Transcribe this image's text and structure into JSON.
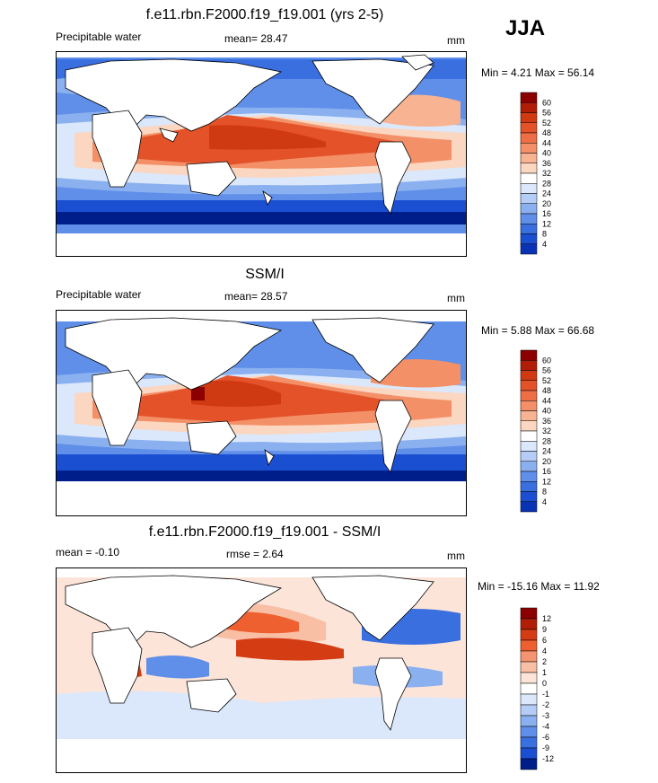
{
  "season": "JJA",
  "panels": [
    {
      "title": "f.e11.rbn.F2000.f19_f19.001 (yrs 2-5)",
      "left_label": "Precipitable water",
      "mid_label": "mean=  28.47",
      "units": "mm",
      "minmax": "Min =   4.21 Max =  56.14",
      "levels": [
        "60",
        "56",
        "52",
        "48",
        "44",
        "40",
        "36",
        "32",
        "28",
        "24",
        "20",
        "16",
        "12",
        "8",
        "4"
      ]
    },
    {
      "title": "SSM/I",
      "left_label": "Precipitable water",
      "mid_label": "mean=  28.57",
      "units": "mm",
      "minmax": "Min =   5.88 Max =  66.68",
      "levels": [
        "60",
        "56",
        "52",
        "48",
        "44",
        "40",
        "36",
        "32",
        "28",
        "24",
        "20",
        "16",
        "12",
        "8",
        "4"
      ]
    },
    {
      "title": "f.e11.rbn.F2000.f19_f19.001 - SSM/I",
      "left_label": "mean =  -0.10",
      "mid_label": "rmse =   2.64",
      "units": "mm",
      "minmax": "Min = -15.16 Max =  11.92",
      "levels": [
        "12",
        "9",
        "6",
        "4",
        "2",
        "1",
        "0",
        "-1",
        "-2",
        "-3",
        "-4",
        "-6",
        "-9",
        "-12"
      ]
    }
  ],
  "colors": {
    "seq": [
      "#8b0000",
      "#b01e08",
      "#cf3a12",
      "#e4522a",
      "#ee6f46",
      "#f39068",
      "#f7b392",
      "#fbd6c0",
      "#ffffff",
      "#dbe8fb",
      "#b5cdf6",
      "#8bb0f0",
      "#5f8fe8",
      "#3a6fe0",
      "#1a4fd2",
      "#0a32b4",
      "#001e8a"
    ],
    "div": [
      "#8b0000",
      "#b01e08",
      "#d43c14",
      "#ee6030",
      "#f59470",
      "#f9bfa4",
      "#fde4d8",
      "#ffffff",
      "#dbe8fb",
      "#b5cdf6",
      "#8bb0f0",
      "#5f8fe8",
      "#3a6fe0",
      "#1a4fd2",
      "#001e8a"
    ]
  }
}
